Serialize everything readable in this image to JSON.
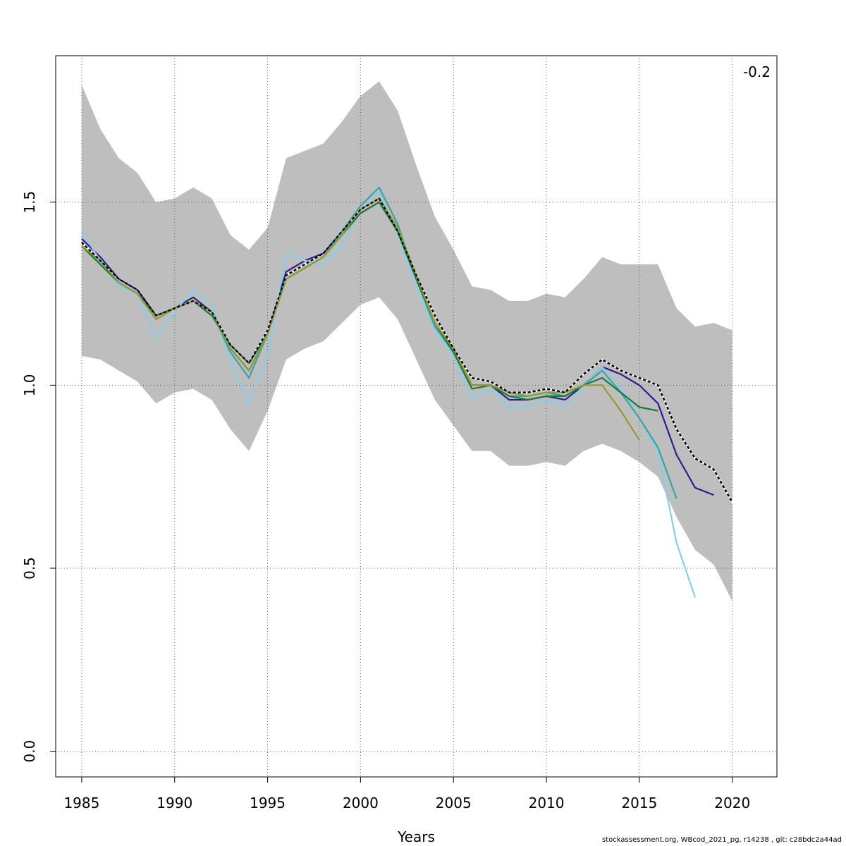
{
  "chart_data": {
    "type": "line",
    "xlabel": "Years",
    "ylabel": "",
    "xlim": [
      1983.6,
      2022.4
    ],
    "ylim": [
      -0.07,
      1.9
    ],
    "x_ticks": [
      1985,
      1990,
      1995,
      2000,
      2005,
      2010,
      2015,
      2020
    ],
    "y_ticks": [
      0.0,
      0.5,
      1.0,
      1.5
    ],
    "x_tick_labels": [
      "1985",
      "1990",
      "1995",
      "2000",
      "2005",
      "2010",
      "2015",
      "2020"
    ],
    "y_tick_labels": [
      "0.0",
      "0.5",
      "1.0",
      "1.5"
    ],
    "grid": true,
    "annotation": "-0.2",
    "confidence_band": {
      "color": "#bebebe",
      "x": [
        1985,
        1986,
        1987,
        1988,
        1989,
        1990,
        1991,
        1992,
        1993,
        1994,
        1995,
        1996,
        1997,
        1998,
        1999,
        2000,
        2001,
        2002,
        2003,
        2004,
        2005,
        2006,
        2007,
        2008,
        2009,
        2010,
        2011,
        2012,
        2013,
        2014,
        2015,
        2016,
        2017,
        2018,
        2019,
        2020
      ],
      "upper": [
        1.82,
        1.7,
        1.62,
        1.58,
        1.5,
        1.51,
        1.54,
        1.51,
        1.41,
        1.37,
        1.43,
        1.62,
        1.64,
        1.66,
        1.72,
        1.79,
        1.83,
        1.75,
        1.6,
        1.46,
        1.37,
        1.27,
        1.26,
        1.23,
        1.23,
        1.25,
        1.24,
        1.29,
        1.35,
        1.33,
        1.33,
        1.33,
        1.21,
        1.16,
        1.17,
        1.15
      ],
      "lower": [
        1.08,
        1.07,
        1.04,
        1.01,
        0.95,
        0.98,
        0.99,
        0.96,
        0.88,
        0.82,
        0.93,
        1.07,
        1.1,
        1.12,
        1.17,
        1.22,
        1.24,
        1.18,
        1.07,
        0.96,
        0.89,
        0.82,
        0.82,
        0.78,
        0.78,
        0.79,
        0.78,
        0.82,
        0.84,
        0.82,
        0.79,
        0.75,
        0.64,
        0.55,
        0.51,
        0.41
      ]
    },
    "series": [
      {
        "color": "#000000",
        "dashed": true,
        "x": [
          1985,
          1986,
          1987,
          1988,
          1989,
          1990,
          1991,
          1992,
          1993,
          1994,
          1995,
          1996,
          1997,
          1998,
          1999,
          2000,
          2001,
          2002,
          2003,
          2004,
          2005,
          2006,
          2007,
          2008,
          2009,
          2010,
          2011,
          2012,
          2013,
          2014,
          2015,
          2016,
          2017,
          2018,
          2019,
          2020
        ],
        "values": [
          1.39,
          1.34,
          1.29,
          1.26,
          1.19,
          1.21,
          1.23,
          1.2,
          1.11,
          1.06,
          1.15,
          1.3,
          1.33,
          1.36,
          1.42,
          1.48,
          1.51,
          1.42,
          1.3,
          1.19,
          1.1,
          1.02,
          1.01,
          0.98,
          0.98,
          0.99,
          0.98,
          1.03,
          1.07,
          1.04,
          1.02,
          1.0,
          0.88,
          0.8,
          0.77,
          0.68
        ]
      },
      {
        "color": "#2e1d8c",
        "x": [
          1985,
          1986,
          1987,
          1988,
          1989,
          1990,
          1991,
          1992,
          1993,
          1994,
          1995,
          1996,
          1997,
          1998,
          1999,
          2000,
          2001,
          2002,
          2003,
          2004,
          2005,
          2006,
          2007,
          2008,
          2009,
          2010,
          2011,
          2012,
          2013,
          2014,
          2015,
          2016,
          2017,
          2018,
          2019
        ],
        "values": [
          1.4,
          1.35,
          1.29,
          1.26,
          1.19,
          1.21,
          1.24,
          1.2,
          1.1,
          1.04,
          1.14,
          1.31,
          1.34,
          1.36,
          1.42,
          1.47,
          1.5,
          1.42,
          1.29,
          1.17,
          1.09,
          1.0,
          1.0,
          0.96,
          0.96,
          0.97,
          0.96,
          1.0,
          1.05,
          1.03,
          1.0,
          0.95,
          0.81,
          0.72,
          0.7
        ]
      },
      {
        "color": "#87cdea",
        "x": [
          1985,
          1986,
          1987,
          1988,
          1989,
          1990,
          1991,
          1992,
          1993,
          1994,
          1995,
          1996,
          1997,
          1998,
          1999,
          2000,
          2001,
          2002,
          2003,
          2004,
          2005,
          2006,
          2007,
          2008,
          2009,
          2010,
          2011,
          2012,
          2013,
          2014,
          2015,
          2016,
          2017,
          2018
        ],
        "values": [
          1.42,
          1.34,
          1.27,
          1.25,
          1.13,
          1.2,
          1.26,
          1.22,
          1.07,
          0.95,
          1.08,
          1.36,
          1.34,
          1.33,
          1.38,
          1.48,
          1.53,
          1.41,
          1.27,
          1.15,
          1.08,
          0.96,
          0.99,
          0.94,
          0.94,
          0.96,
          0.94,
          1.0,
          1.05,
          0.99,
          0.91,
          0.82,
          0.57,
          0.42
        ]
      },
      {
        "color": "#3aa3a3",
        "x": [
          1985,
          1986,
          1987,
          1988,
          1989,
          1990,
          1991,
          1992,
          1993,
          1994,
          1995,
          1996,
          1997,
          1998,
          1999,
          2000,
          2001,
          2002,
          2003,
          2004,
          2005,
          2006,
          2007,
          2008,
          2009,
          2010,
          2011,
          2012,
          2013,
          2014,
          2015,
          2016,
          2017
        ],
        "values": [
          1.38,
          1.34,
          1.28,
          1.25,
          1.18,
          1.21,
          1.23,
          1.2,
          1.09,
          1.02,
          1.14,
          1.29,
          1.32,
          1.35,
          1.42,
          1.49,
          1.54,
          1.44,
          1.29,
          1.16,
          1.09,
          1.0,
          1.0,
          0.97,
          0.97,
          0.98,
          0.97,
          1.0,
          1.04,
          0.98,
          0.91,
          0.83,
          0.69
        ]
      },
      {
        "color": "#1d7a3a",
        "x": [
          1985,
          1986,
          1987,
          1988,
          1989,
          1990,
          1991,
          1992,
          1993,
          1994,
          1995,
          1996,
          1997,
          1998,
          1999,
          2000,
          2001,
          2002,
          2003,
          2004,
          2005,
          2006,
          2007,
          2008,
          2009,
          2010,
          2011,
          2012,
          2013,
          2014,
          2015,
          2016
        ],
        "values": [
          1.38,
          1.33,
          1.28,
          1.25,
          1.19,
          1.21,
          1.23,
          1.19,
          1.11,
          1.06,
          1.14,
          1.29,
          1.32,
          1.35,
          1.41,
          1.47,
          1.5,
          1.42,
          1.29,
          1.17,
          1.09,
          0.99,
          1.0,
          0.97,
          0.96,
          0.97,
          0.97,
          1.0,
          1.02,
          0.98,
          0.94,
          0.93
        ]
      },
      {
        "color": "#999933",
        "x": [
          1985,
          1986,
          1987,
          1988,
          1989,
          1990,
          1991,
          1992,
          1993,
          1994,
          1995,
          1996,
          1997,
          1998,
          1999,
          2000,
          2001,
          2002,
          2003,
          2004,
          2005,
          2006,
          2007,
          2008,
          2009,
          2010,
          2011,
          2012,
          2013,
          2014,
          2015
        ],
        "values": [
          1.38,
          1.34,
          1.28,
          1.25,
          1.18,
          1.21,
          1.23,
          1.2,
          1.1,
          1.04,
          1.14,
          1.29,
          1.32,
          1.35,
          1.41,
          1.48,
          1.51,
          1.43,
          1.3,
          1.17,
          1.1,
          1.0,
          1.0,
          0.98,
          0.97,
          0.98,
          0.98,
          1.0,
          1.0,
          0.93,
          0.85
        ]
      }
    ]
  },
  "footer": "stockassessment.org, WBcod_2021_pg, r14238 , git: c28bdc2a44ad"
}
